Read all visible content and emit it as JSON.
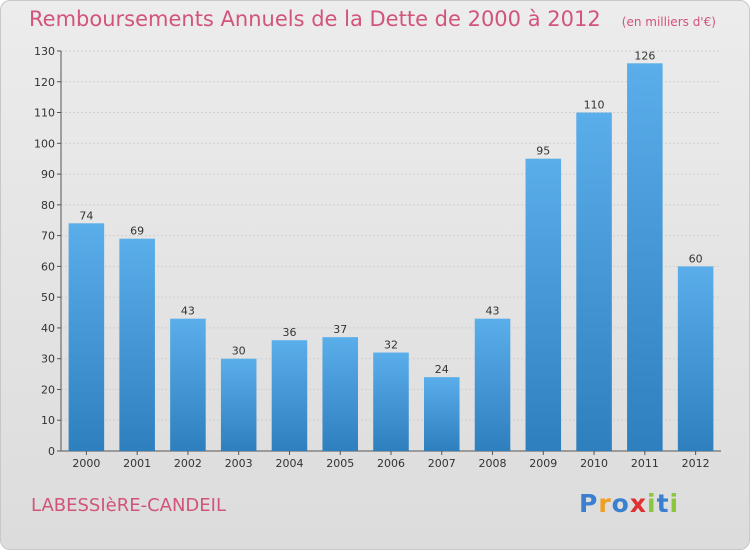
{
  "chart_data": {
    "type": "bar",
    "title": "Remboursements Annuels de la Dette de 2000 à 2012",
    "unit_label": "(en milliers d'€)",
    "categories": [
      "2000",
      "2001",
      "2002",
      "2003",
      "2004",
      "2005",
      "2006",
      "2007",
      "2008",
      "2009",
      "2010",
      "2011",
      "2012"
    ],
    "values": [
      74,
      69,
      43,
      30,
      36,
      37,
      32,
      24,
      43,
      95,
      110,
      126,
      60
    ],
    "ylim": [
      0,
      130
    ],
    "yticks": [
      0,
      10,
      20,
      30,
      40,
      50,
      60,
      70,
      80,
      90,
      100,
      110,
      120,
      130
    ],
    "grid": true,
    "bar_color": "#4a9edf",
    "text_color": "#d2547a"
  },
  "commune": "LABESSIèRE-CANDEIL",
  "logo": {
    "letters": [
      "P",
      "r",
      "o",
      "x",
      "i",
      "t",
      "i"
    ],
    "colors": [
      "#3a7fd0",
      "#f0a020",
      "#3a7fd0",
      "#e03030",
      "#8cc63f",
      "#3a7fd0",
      "#8cc63f"
    ]
  }
}
